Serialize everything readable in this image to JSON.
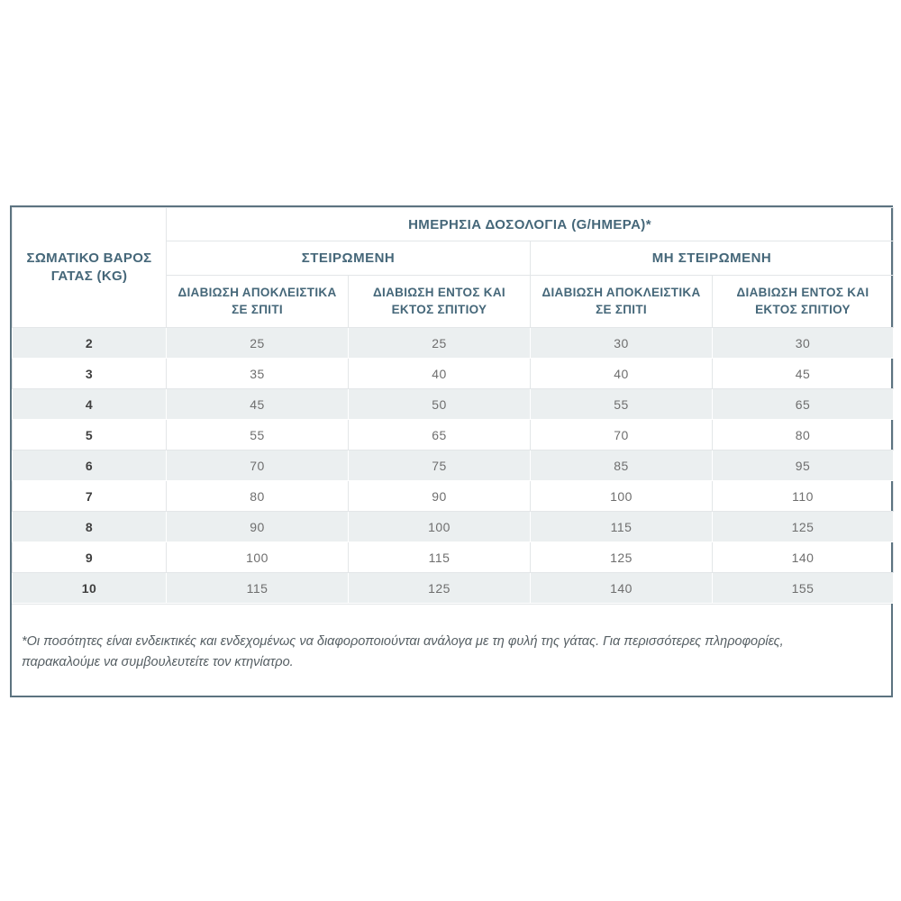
{
  "table": {
    "title": "ΗΜΕΡΗΣΙΑ ΔΟΣΟΛΟΓΙΑ (G/ΗΜΕΡΑ)*",
    "weight_header": "ΣΩΜΑΤΙΚΟ ΒΑΡΟΣ ΓΑΤΑΣ (KG)",
    "groups": [
      {
        "label": "ΣΤΕΙΡΩΜΕΝΗ"
      },
      {
        "label": "ΜΗ ΣΤΕΙΡΩΜΕΝΗ"
      }
    ],
    "subheaders": [
      "ΔΙΑΒΙΩΣΗ ΑΠΟΚΛΕΙΣΤΙΚΑ ΣΕ ΣΠΙΤΙ",
      "ΔΙΑΒΙΩΣΗ ΕΝΤΟΣ ΚΑΙ ΕΚΤΟΣ ΣΠΙΤΙΟΥ",
      "ΔΙΑΒΙΩΣΗ ΑΠΟΚΛΕΙΣΤΙΚΑ ΣΕ ΣΠΙΤΙ",
      "ΔΙΑΒΙΩΣΗ ΕΝΤΟΣ ΚΑΙ ΕΚΤΟΣ ΣΠΙΤΙΟΥ"
    ],
    "rows": [
      {
        "kg": "2",
        "values": [
          "25",
          "25",
          "30",
          "30"
        ]
      },
      {
        "kg": "3",
        "values": [
          "35",
          "40",
          "40",
          "45"
        ]
      },
      {
        "kg": "4",
        "values": [
          "45",
          "50",
          "55",
          "65"
        ]
      },
      {
        "kg": "5",
        "values": [
          "55",
          "65",
          "70",
          "80"
        ]
      },
      {
        "kg": "6",
        "values": [
          "70",
          "75",
          "85",
          "95"
        ]
      },
      {
        "kg": "7",
        "values": [
          "80",
          "90",
          "100",
          "110"
        ]
      },
      {
        "kg": "8",
        "values": [
          "90",
          "100",
          "115",
          "125"
        ]
      },
      {
        "kg": "9",
        "values": [
          "100",
          "115",
          "125",
          "140"
        ]
      },
      {
        "kg": "10",
        "values": [
          "115",
          "125",
          "140",
          "155"
        ]
      }
    ],
    "footnote": "*Οι ποσότητες είναι ενδεικτικές και ενδεχομένως να διαφοροποιούνται ανάλογα με τη φυλή της γάτας. Για περισσότερες πληροφορίες, παρακαλούμε να συμβουλευτείτε τον κτηνίατρο.",
    "colors": {
      "header_text": "#456779",
      "outer_border": "#5c7380",
      "shaded_row": "#ebeff0",
      "value_text": "#6e6e6e"
    }
  }
}
